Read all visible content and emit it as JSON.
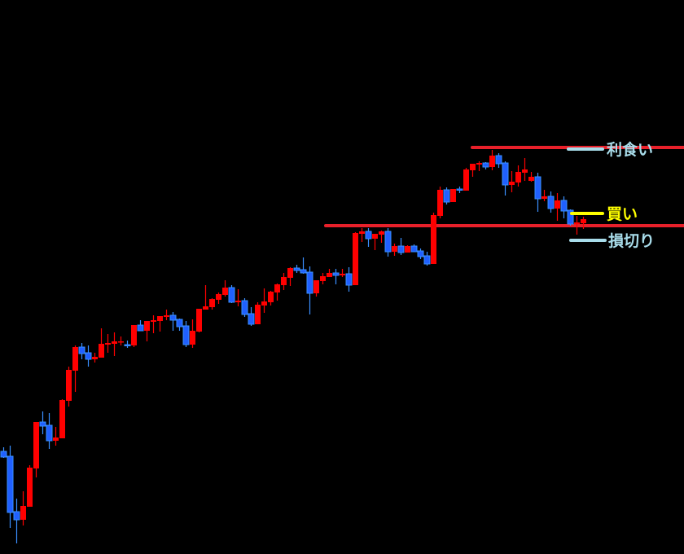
{
  "chart_data": {
    "type": "candlestick",
    "title": "",
    "xlabel": "",
    "ylabel": "",
    "ylim": [
      0,
      68
    ],
    "grid": false,
    "background": "#000000",
    "colors": {
      "up": "#ff0000",
      "down": "#2060ff",
      "down_outline": "#3a90ff",
      "level_line": "#e8202a",
      "label_blue": "#a8dcea",
      "label_yellow": "#ffff00"
    },
    "candles": [
      [
        12.6,
        13.1,
        11.8,
        11.9
      ],
      [
        12.0,
        13.3,
        3.2,
        5.1
      ],
      [
        5.2,
        6.8,
        1.3,
        4.2
      ],
      [
        4.2,
        7.7,
        3.5,
        5.9
      ],
      [
        5.8,
        10.9,
        5.8,
        10.6
      ],
      [
        10.5,
        16.2,
        9.4,
        16.2
      ],
      [
        16.2,
        17.5,
        14.7,
        15.7
      ],
      [
        15.8,
        17.3,
        12.9,
        13.9
      ],
      [
        13.9,
        15.6,
        13.3,
        14.3
      ],
      [
        14.2,
        19.0,
        14.2,
        18.9
      ],
      [
        18.8,
        23.0,
        18.1,
        22.6
      ],
      [
        22.5,
        25.6,
        19.9,
        25.4
      ],
      [
        25.4,
        25.9,
        23.9,
        24.6
      ],
      [
        24.7,
        25.6,
        23.0,
        23.9
      ],
      [
        23.9,
        24.7,
        23.5,
        24.2
      ],
      [
        24.1,
        27.7,
        24.1,
        25.8
      ],
      [
        25.7,
        27.0,
        24.7,
        25.9
      ],
      [
        25.8,
        27.2,
        24.3,
        26.1
      ],
      [
        26.0,
        26.7,
        25.6,
        26.1
      ],
      [
        25.7,
        26.2,
        25.3,
        25.6
      ],
      [
        25.6,
        28.1,
        25.4,
        28.1
      ],
      [
        28.1,
        28.7,
        27.4,
        27.4
      ],
      [
        27.4,
        28.6,
        26.1,
        28.6
      ],
      [
        28.5,
        29.3,
        27.1,
        28.7
      ],
      [
        28.6,
        29.2,
        27.3,
        29.2
      ],
      [
        29.1,
        30.0,
        28.7,
        29.3
      ],
      [
        29.3,
        29.7,
        27.4,
        28.7
      ],
      [
        28.8,
        28.9,
        27.4,
        27.9
      ],
      [
        28.0,
        28.6,
        25.4,
        25.7
      ],
      [
        25.7,
        28.8,
        25.3,
        27.4
      ],
      [
        27.3,
        30.1,
        27.2,
        30.1
      ],
      [
        30.0,
        33.0,
        30.0,
        30.4
      ],
      [
        30.3,
        31.4,
        30.0,
        31.3
      ],
      [
        31.2,
        32.1,
        30.7,
        31.9
      ],
      [
        31.8,
        33.6,
        31.6,
        32.7
      ],
      [
        32.7,
        33.0,
        30.8,
        30.9
      ],
      [
        30.9,
        32.5,
        30.4,
        31.1
      ],
      [
        31.1,
        31.4,
        29.1,
        29.4
      ],
      [
        29.5,
        30.3,
        28.0,
        28.2
      ],
      [
        28.2,
        30.9,
        28.2,
        30.6
      ],
      [
        30.5,
        32.6,
        29.6,
        31.0
      ],
      [
        30.9,
        32.3,
        30.5,
        32.2
      ],
      [
        32.1,
        33.2,
        31.1,
        33.1
      ],
      [
        33.0,
        34.5,
        32.4,
        34.0
      ],
      [
        33.9,
        35.2,
        32.9,
        35.1
      ],
      [
        35.1,
        35.5,
        34.5,
        34.8
      ],
      [
        34.9,
        36.4,
        34.4,
        34.5
      ],
      [
        34.6,
        35.3,
        29.4,
        32.0
      ],
      [
        32.0,
        33.6,
        31.6,
        33.6
      ],
      [
        33.5,
        34.5,
        33.1,
        34.1
      ],
      [
        34.0,
        35.0,
        34.0,
        34.5
      ],
      [
        34.5,
        35.0,
        33.1,
        34.2
      ],
      [
        34.2,
        35.0,
        34.0,
        34.4
      ],
      [
        34.4,
        35.2,
        32.2,
        33.0
      ],
      [
        33.0,
        39.5,
        33.0,
        39.4
      ],
      [
        39.3,
        40.0,
        38.3,
        39.6
      ],
      [
        39.6,
        40.0,
        37.7,
        38.7
      ],
      [
        38.7,
        39.3,
        37.3,
        39.3
      ],
      [
        39.2,
        39.7,
        38.2,
        39.6
      ],
      [
        39.6,
        40.0,
        36.5,
        37.1
      ],
      [
        37.1,
        38.1,
        36.6,
        37.8
      ],
      [
        37.8,
        38.8,
        36.7,
        37.0
      ],
      [
        37.0,
        37.9,
        37.0,
        37.8
      ],
      [
        37.8,
        38.0,
        37.1,
        37.1
      ],
      [
        37.2,
        37.5,
        36.2,
        36.5
      ],
      [
        36.6,
        37.1,
        35.4,
        35.6
      ],
      [
        35.6,
        41.9,
        35.6,
        41.6
      ],
      [
        41.5,
        45.1,
        41.2,
        44.7
      ],
      [
        44.7,
        45.0,
        42.9,
        43.2
      ],
      [
        43.2,
        44.8,
        43.2,
        44.8
      ],
      [
        44.8,
        45.1,
        44.3,
        44.7
      ],
      [
        44.6,
        47.4,
        44.6,
        47.2
      ],
      [
        47.1,
        47.9,
        46.3,
        47.9
      ],
      [
        47.8,
        48.2,
        47.0,
        48.0
      ],
      [
        48.0,
        48.1,
        47.2,
        47.5
      ],
      [
        47.5,
        49.6,
        47.1,
        48.9
      ],
      [
        48.9,
        49.2,
        47.4,
        47.9
      ],
      [
        48.0,
        48.2,
        44.0,
        45.3
      ],
      [
        45.3,
        47.0,
        44.4,
        45.7
      ],
      [
        45.6,
        47.7,
        45.1,
        46.9
      ],
      [
        46.8,
        48.6,
        45.8,
        47.2
      ],
      [
        45.8,
        46.9,
        45.7,
        46.3
      ],
      [
        46.3,
        46.8,
        42.0,
        43.6
      ],
      [
        43.6,
        44.7,
        43.3,
        43.9
      ],
      [
        43.9,
        44.5,
        41.9,
        42.4
      ],
      [
        42.4,
        44.3,
        40.9,
        43.4
      ],
      [
        43.4,
        43.9,
        41.2,
        42.1
      ],
      [
        42.2,
        42.3,
        40.3,
        40.5
      ],
      [
        40.5,
        41.5,
        39.2,
        40.7
      ],
      [
        40.6,
        41.4,
        39.9,
        41.1
      ]
    ],
    "horizontal_lines": [
      {
        "value": 49.9,
        "color": "#e8202a"
      },
      {
        "value": 40.3,
        "color": "#e8202a"
      }
    ],
    "annotations": [
      {
        "text": "利食い",
        "value": 49.7,
        "color": "#a8dcea"
      },
      {
        "text": "買い",
        "value": 41.8,
        "color": "#ffff00"
      },
      {
        "text": "損切り",
        "value": 38.5,
        "color": "#a8dcea"
      }
    ]
  }
}
